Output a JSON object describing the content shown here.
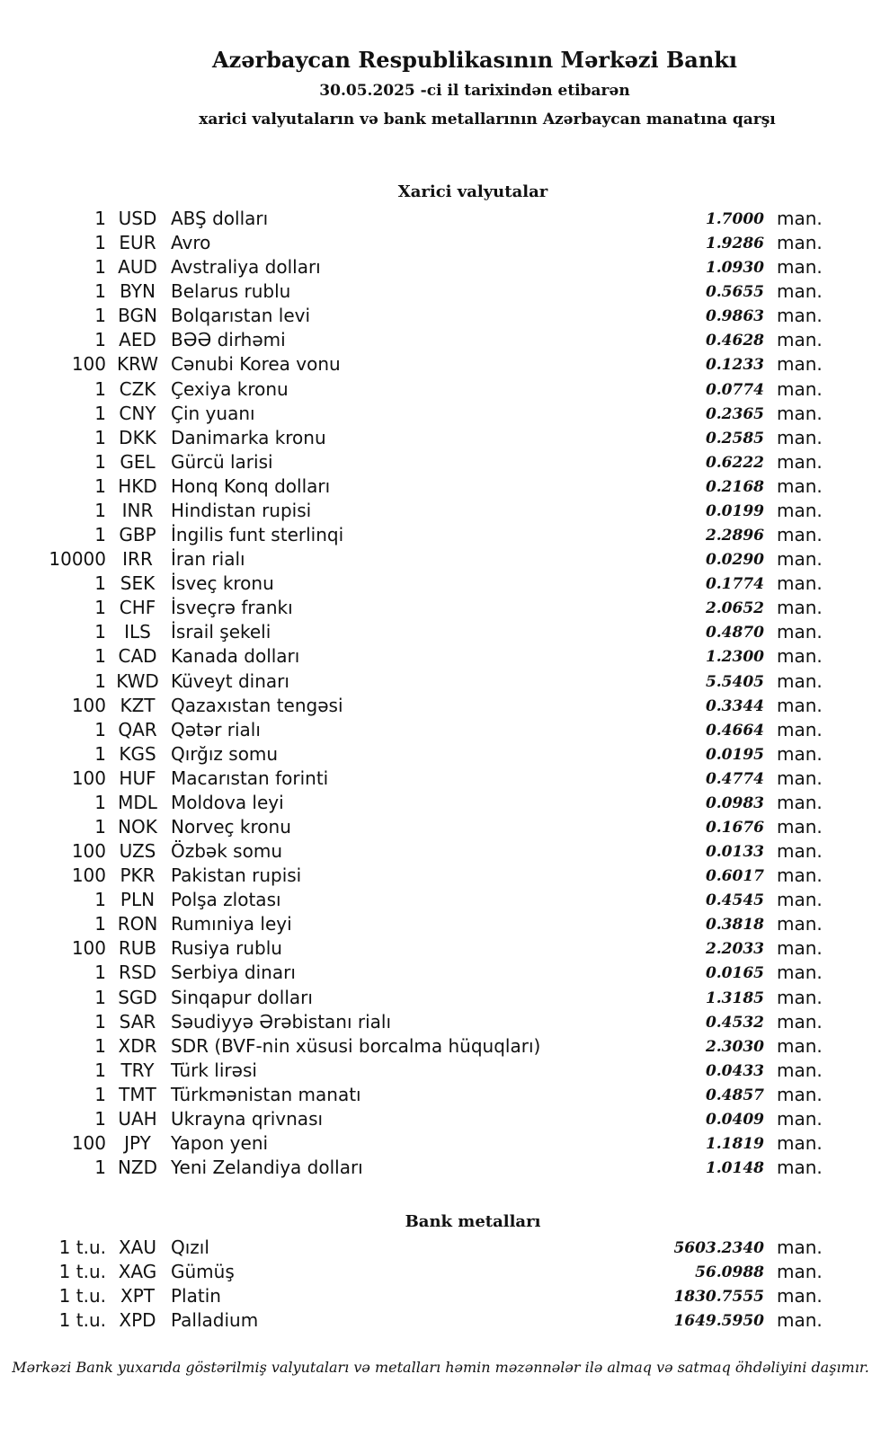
{
  "header": {
    "title": "Azərbaycan Respublikasının Mərkəzi Bankı",
    "date_line": "30.05.2025 -ci il tarixindən etibarən",
    "subtitle": "xarici valyutaların və bank metallarının Azərbaycan manatına qarşı"
  },
  "currencies": {
    "heading": "Xarici valyutalar",
    "rows": [
      {
        "amount": "1",
        "code": "USD",
        "name": "ABŞ dolları",
        "rate": "1.7000",
        "unit": "man."
      },
      {
        "amount": "1",
        "code": "EUR",
        "name": "Avro",
        "rate": "1.9286",
        "unit": "man."
      },
      {
        "amount": "1",
        "code": "AUD",
        "name": "Avstraliya dolları",
        "rate": "1.0930",
        "unit": "man."
      },
      {
        "amount": "1",
        "code": "BYN",
        "name": "Belarus rublu",
        "rate": "0.5655",
        "unit": "man."
      },
      {
        "amount": "1",
        "code": "BGN",
        "name": "Bolqarıstan levi",
        "rate": "0.9863",
        "unit": "man."
      },
      {
        "amount": "1",
        "code": "AED",
        "name": "BƏƏ dirhəmi",
        "rate": "0.4628",
        "unit": "man."
      },
      {
        "amount": "100",
        "code": "KRW",
        "name": "Cənubi Korea vonu",
        "rate": "0.1233",
        "unit": "man."
      },
      {
        "amount": "1",
        "code": "CZK",
        "name": "Çexiya kronu",
        "rate": "0.0774",
        "unit": "man."
      },
      {
        "amount": "1",
        "code": "CNY",
        "name": "Çin yuanı",
        "rate": "0.2365",
        "unit": "man."
      },
      {
        "amount": "1",
        "code": "DKK",
        "name": "Danimarka kronu",
        "rate": "0.2585",
        "unit": "man."
      },
      {
        "amount": "1",
        "code": "GEL",
        "name": "Gürcü larisi",
        "rate": "0.6222",
        "unit": "man."
      },
      {
        "amount": "1",
        "code": "HKD",
        "name": "Honq Konq dolları",
        "rate": "0.2168",
        "unit": "man."
      },
      {
        "amount": "1",
        "code": "INR",
        "name": "Hindistan rupisi",
        "rate": "0.0199",
        "unit": "man."
      },
      {
        "amount": "1",
        "code": "GBP",
        "name": "İngilis funt sterlinqi",
        "rate": "2.2896",
        "unit": "man."
      },
      {
        "amount": "10000",
        "code": "IRR",
        "name": "İran rialı",
        "rate": "0.0290",
        "unit": "man."
      },
      {
        "amount": "1",
        "code": "SEK",
        "name": "İsveç kronu",
        "rate": "0.1774",
        "unit": "man."
      },
      {
        "amount": "1",
        "code": "CHF",
        "name": "İsveçrə frankı",
        "rate": "2.0652",
        "unit": "man."
      },
      {
        "amount": "1",
        "code": "ILS",
        "name": "İsrail şekeli",
        "rate": "0.4870",
        "unit": "man."
      },
      {
        "amount": "1",
        "code": "CAD",
        "name": "Kanada dolları",
        "rate": "1.2300",
        "unit": "man."
      },
      {
        "amount": "1",
        "code": "KWD",
        "name": "Küveyt dinarı",
        "rate": "5.5405",
        "unit": "man."
      },
      {
        "amount": "100",
        "code": "KZT",
        "name": "Qazaxıstan tengəsi",
        "rate": "0.3344",
        "unit": "man."
      },
      {
        "amount": "1",
        "code": "QAR",
        "name": "Qətər rialı",
        "rate": "0.4664",
        "unit": "man."
      },
      {
        "amount": "1",
        "code": "KGS",
        "name": "Qırğız somu",
        "rate": "0.0195",
        "unit": "man."
      },
      {
        "amount": "100",
        "code": "HUF",
        "name": "Macarıstan forinti",
        "rate": "0.4774",
        "unit": "man."
      },
      {
        "amount": "1",
        "code": "MDL",
        "name": "Moldova leyi",
        "rate": "0.0983",
        "unit": "man."
      },
      {
        "amount": "1",
        "code": "NOK",
        "name": "Norveç kronu",
        "rate": "0.1676",
        "unit": "man."
      },
      {
        "amount": "100",
        "code": "UZS",
        "name": "Özbək somu",
        "rate": "0.0133",
        "unit": "man."
      },
      {
        "amount": "100",
        "code": "PKR",
        "name": "Pakistan rupisi",
        "rate": "0.6017",
        "unit": "man."
      },
      {
        "amount": "1",
        "code": "PLN",
        "name": "Polşa zlotası",
        "rate": "0.4545",
        "unit": "man."
      },
      {
        "amount": "1",
        "code": "RON",
        "name": "Rumıniya leyi",
        "rate": "0.3818",
        "unit": "man."
      },
      {
        "amount": "100",
        "code": "RUB",
        "name": "Rusiya rublu",
        "rate": "2.2033",
        "unit": "man."
      },
      {
        "amount": "1",
        "code": "RSD",
        "name": "Serbiya dinarı",
        "rate": "0.0165",
        "unit": "man."
      },
      {
        "amount": "1",
        "code": "SGD",
        "name": "Sinqapur dolları",
        "rate": "1.3185",
        "unit": "man."
      },
      {
        "amount": "1",
        "code": "SAR",
        "name": "Səudiyyə Ərəbistanı rialı",
        "rate": "0.4532",
        "unit": "man."
      },
      {
        "amount": "1",
        "code": "XDR",
        "name": "SDR (BVF-nin xüsusi borcalma hüquqları)",
        "rate": "2.3030",
        "unit": "man."
      },
      {
        "amount": "1",
        "code": "TRY",
        "name": "Türk lirəsi",
        "rate": "0.0433",
        "unit": "man."
      },
      {
        "amount": "1",
        "code": "TMT",
        "name": "Türkmənistan manatı",
        "rate": "0.4857",
        "unit": "man."
      },
      {
        "amount": "1",
        "code": "UAH",
        "name": "Ukrayna qrivnası",
        "rate": "0.0409",
        "unit": "man."
      },
      {
        "amount": "100",
        "code": "JPY",
        "name": "Yapon yeni",
        "rate": "1.1819",
        "unit": "man."
      },
      {
        "amount": "1",
        "code": "NZD",
        "name": "Yeni Zelandiya dolları",
        "rate": "1.0148",
        "unit": "man."
      }
    ]
  },
  "metals": {
    "heading": "Bank metalları",
    "rows": [
      {
        "amount": "1 t.u.",
        "code": "XAU",
        "name": "Qızıl",
        "rate": "5603.2340",
        "unit": "man."
      },
      {
        "amount": "1 t.u.",
        "code": "XAG",
        "name": "Gümüş",
        "rate": "56.0988",
        "unit": "man."
      },
      {
        "amount": "1 t.u.",
        "code": "XPT",
        "name": "Platin",
        "rate": "1830.7555",
        "unit": "man."
      },
      {
        "amount": "1 t.u.",
        "code": "XPD",
        "name": "Palladium",
        "rate": "1649.5950",
        "unit": "man."
      }
    ]
  },
  "footer": "Mərkəzi Bank yuxarıda göstərilmiş valyutaları və metalları həmin məzənnələr ilə almaq və satmaq öhdəliyini daşımır."
}
